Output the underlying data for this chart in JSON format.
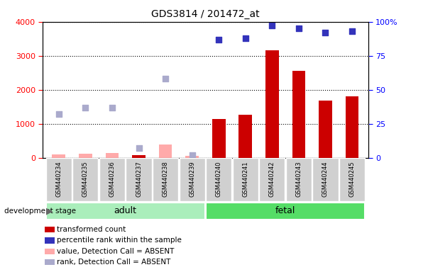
{
  "title": "GDS3814 / 201472_at",
  "samples": [
    "GSM440234",
    "GSM440235",
    "GSM440236",
    "GSM440237",
    "GSM440238",
    "GSM440239",
    "GSM440240",
    "GSM440241",
    "GSM440242",
    "GSM440243",
    "GSM440244",
    "GSM440245"
  ],
  "group": [
    "adult",
    "adult",
    "adult",
    "adult",
    "adult",
    "adult",
    "fetal",
    "fetal",
    "fetal",
    "fetal",
    "fetal",
    "fetal"
  ],
  "transformed_count": [
    null,
    null,
    null,
    80,
    null,
    null,
    1150,
    1270,
    3170,
    2560,
    1680,
    1800
  ],
  "absent_value": [
    90,
    120,
    130,
    null,
    380,
    65,
    null,
    null,
    null,
    null,
    null,
    null
  ],
  "percentile_rank": [
    null,
    null,
    null,
    null,
    null,
    null,
    87,
    88,
    97,
    95,
    92,
    93
  ],
  "absent_rank": [
    32,
    37,
    37,
    7,
    58,
    2,
    null,
    null,
    null,
    null,
    null,
    null
  ],
  "ylim_left": [
    0,
    4000
  ],
  "ylim_right": [
    0,
    100
  ],
  "yticks_left": [
    0,
    1000,
    2000,
    3000,
    4000
  ],
  "yticks_right": [
    0,
    25,
    50,
    75,
    100
  ],
  "bar_color_present": "#cc0000",
  "bar_color_absent": "#ffaaaa",
  "dot_color_present": "#3333bb",
  "dot_color_absent": "#aaaacc",
  "adult_color": "#aaeebb",
  "fetal_color": "#55dd66",
  "bar_width": 0.5,
  "legend_items": [
    {
      "color": "#cc0000",
      "label": "transformed count"
    },
    {
      "color": "#3333bb",
      "label": "percentile rank within the sample"
    },
    {
      "color": "#ffaaaa",
      "label": "value, Detection Call = ABSENT"
    },
    {
      "color": "#aaaacc",
      "label": "rank, Detection Call = ABSENT"
    }
  ]
}
